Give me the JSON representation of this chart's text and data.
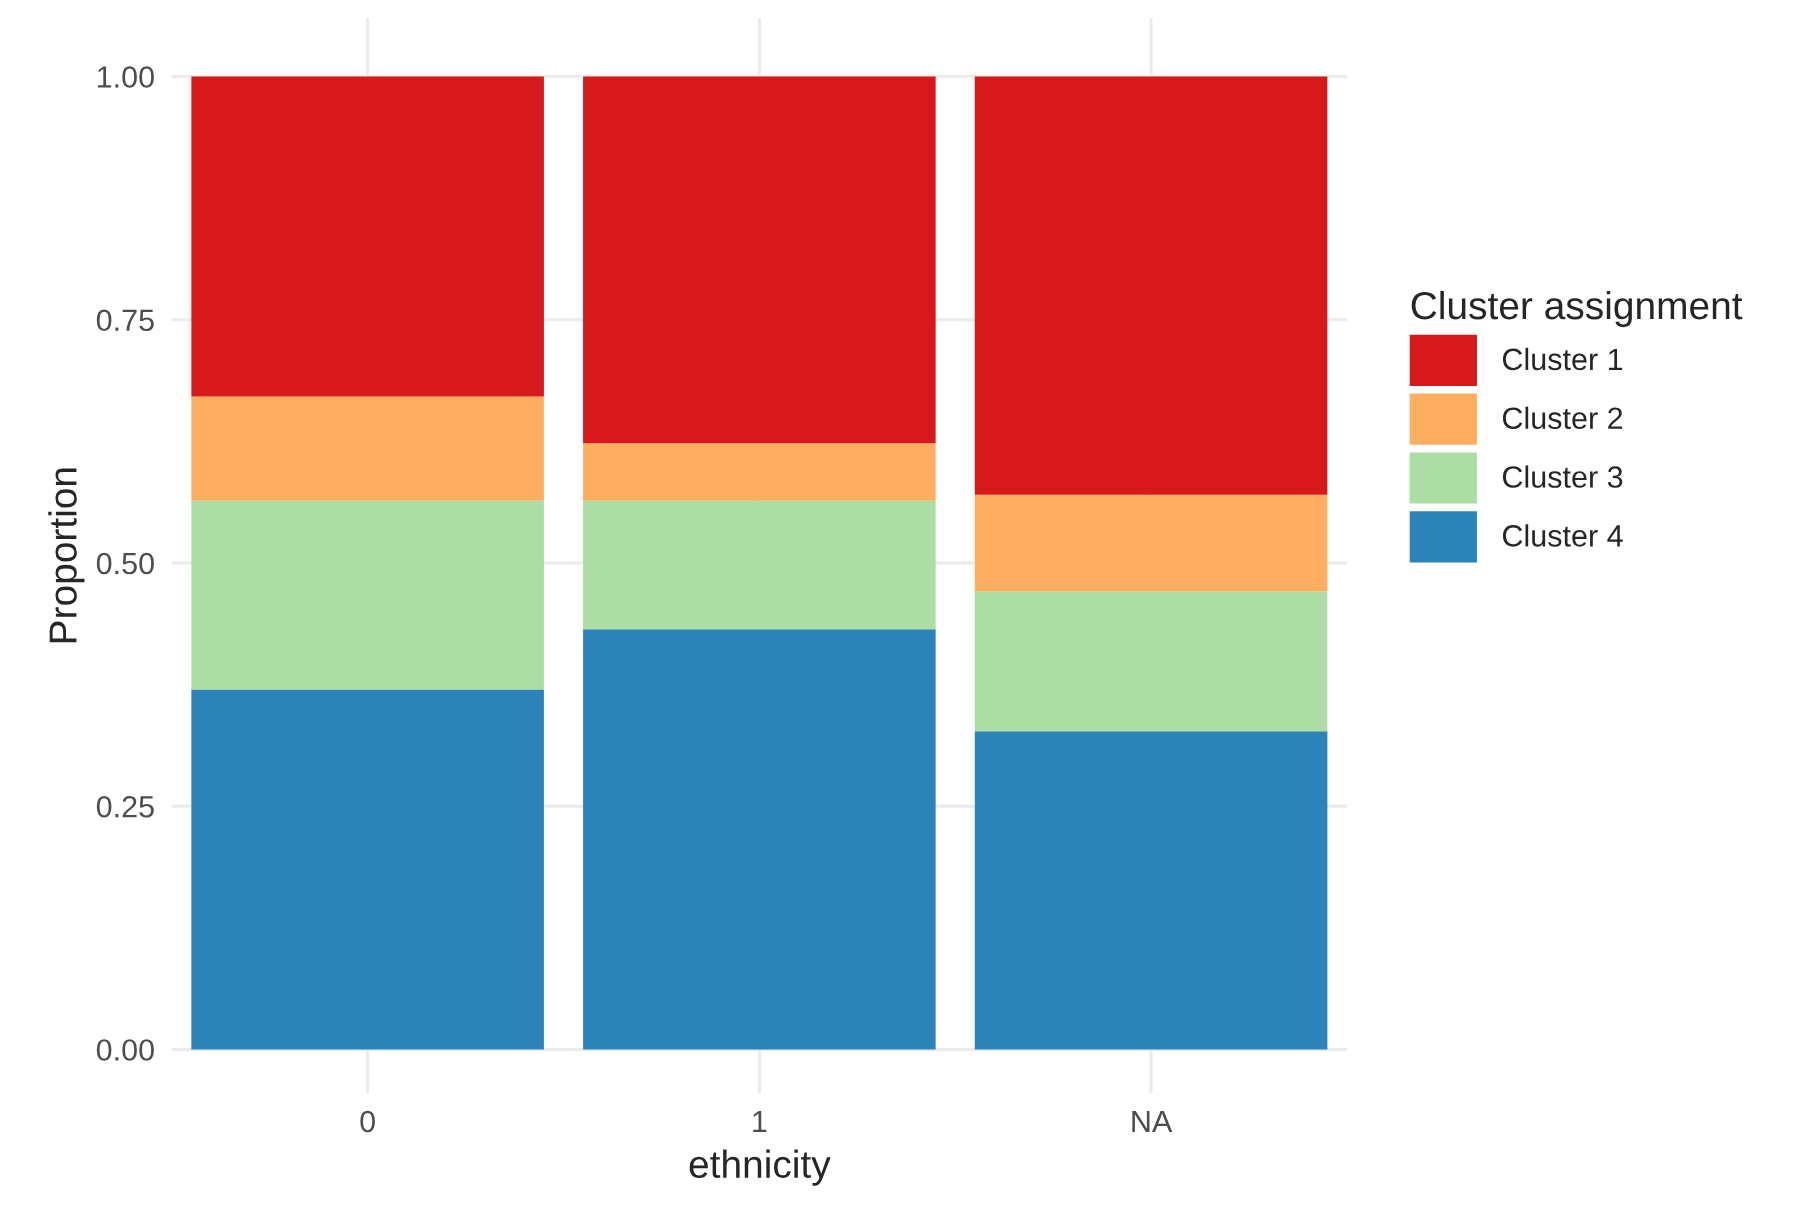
{
  "chart_data": {
    "type": "bar",
    "stacked": true,
    "categories": [
      "0",
      "1",
      "NA"
    ],
    "xlabel": "ethnicity",
    "ylabel": "Proportion",
    "legend_title": "Cluster assignment",
    "series": [
      {
        "name": "Cluster 4",
        "color": "#2b83ba",
        "values": [
          0.37,
          0.432,
          0.327
        ]
      },
      {
        "name": "Cluster 3",
        "color": "#abdda4",
        "values": [
          0.194,
          0.132,
          0.144
        ]
      },
      {
        "name": "Cluster 2",
        "color": "#fdae61",
        "values": [
          0.107,
          0.059,
          0.099
        ]
      },
      {
        "name": "Cluster 1",
        "color": "#d7191c",
        "values": [
          0.329,
          0.377,
          0.43
        ]
      }
    ],
    "ylim": [
      -0.045,
      1.06
    ],
    "yticks": [
      {
        "value": 0,
        "label": "0.00"
      },
      {
        "value": 0.25,
        "label": "0.25"
      },
      {
        "value": 0.5,
        "label": "0.50"
      },
      {
        "value": 0.75,
        "label": "0.75"
      },
      {
        "value": 1,
        "label": "1.00"
      }
    ],
    "grid": true,
    "legend": "right"
  }
}
